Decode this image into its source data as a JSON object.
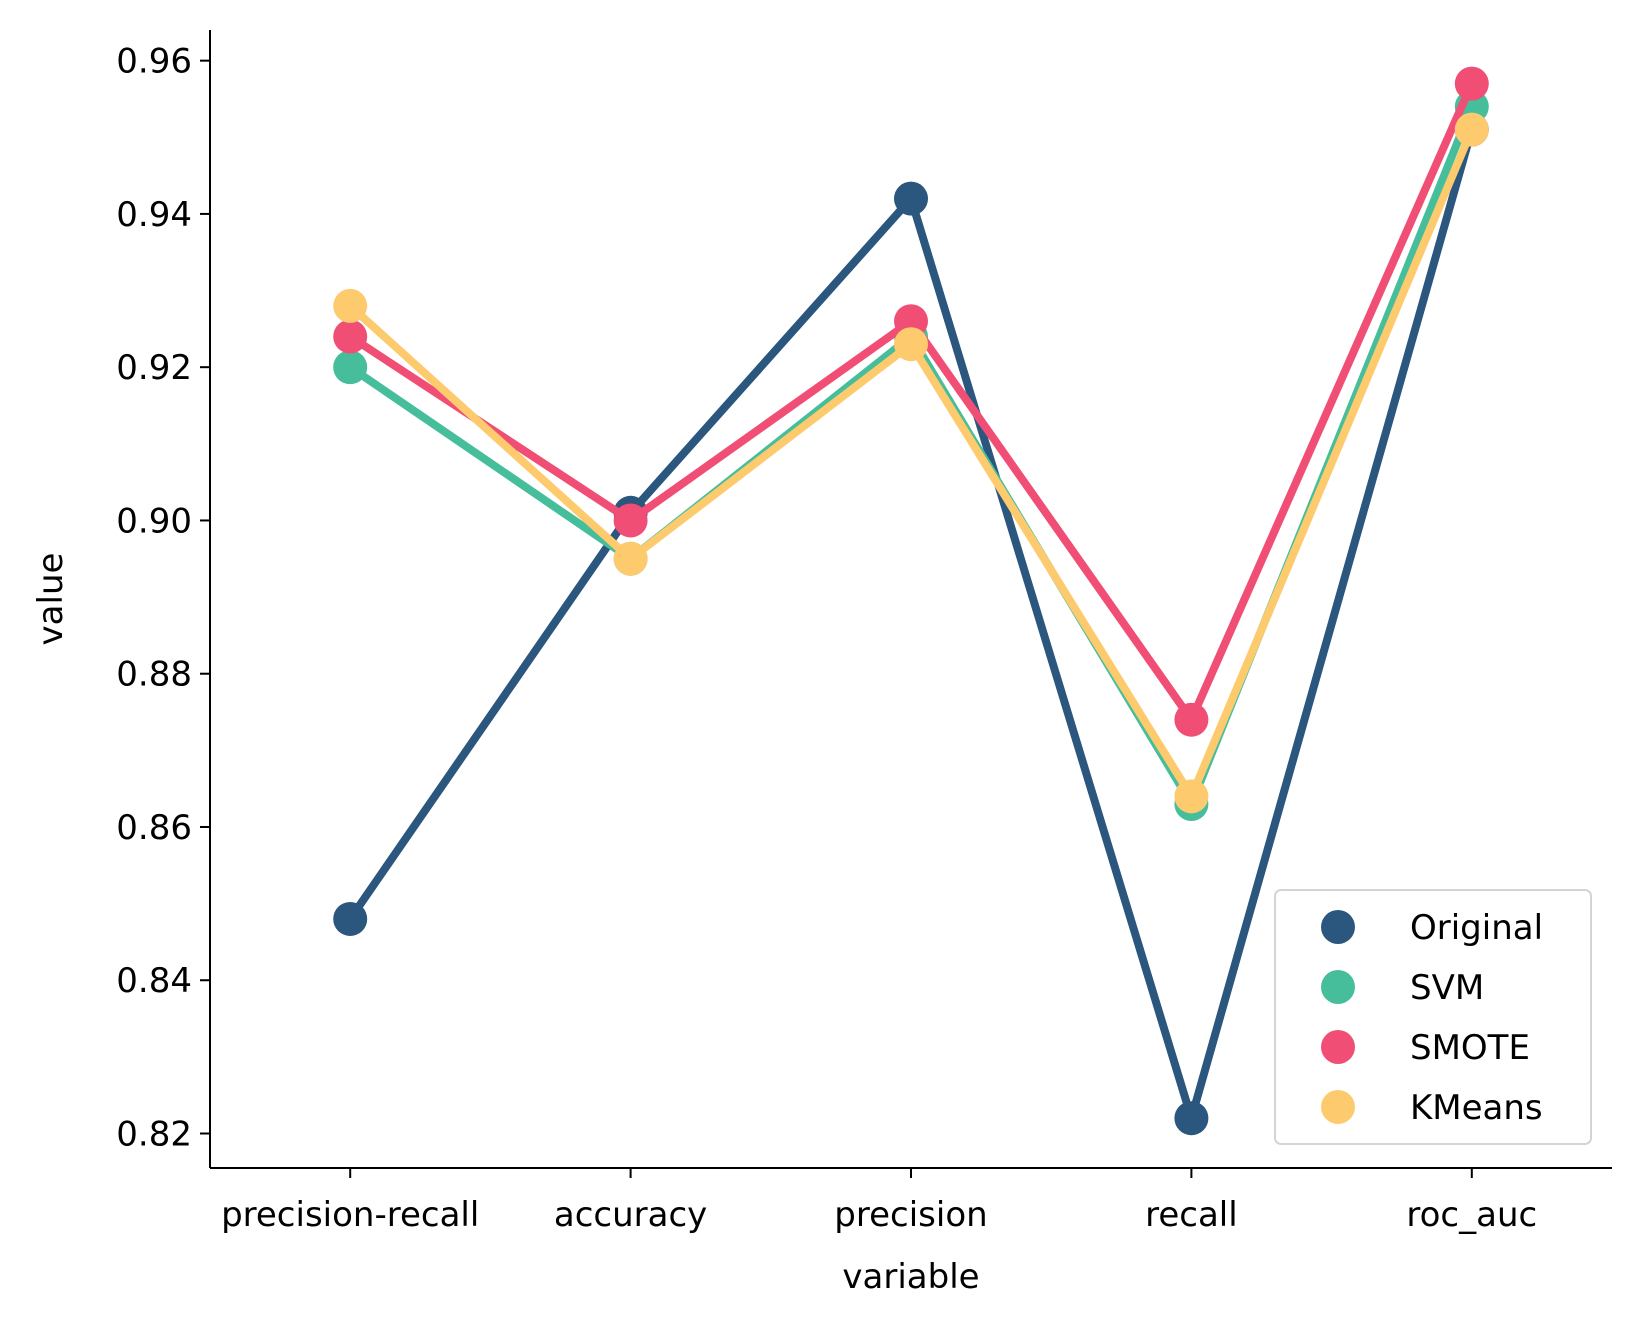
{
  "chart_data": {
    "type": "line",
    "xlabel": "variable",
    "ylabel": "value",
    "categories": [
      "precision-recall",
      "accuracy",
      "precision",
      "recall",
      "roc_auc"
    ],
    "ylim": [
      0.8155,
      0.964
    ],
    "yticks": [
      0.82,
      0.84,
      0.86,
      0.88,
      0.9,
      0.92,
      0.94,
      0.96
    ],
    "ytick_labels": [
      "0.82",
      "0.84",
      "0.86",
      "0.88",
      "0.90",
      "0.92",
      "0.94",
      "0.96"
    ],
    "grid": false,
    "legend_position": "bottom-right",
    "series": [
      {
        "name": "Original",
        "color": "#2b567e",
        "values": [
          0.848,
          0.901,
          0.942,
          0.822,
          0.951
        ]
      },
      {
        "name": "SVM",
        "color": "#46be9c",
        "values": [
          0.92,
          0.895,
          0.924,
          0.863,
          0.954
        ]
      },
      {
        "name": "SMOTE",
        "color": "#f04e75",
        "values": [
          0.924,
          0.9,
          0.926,
          0.874,
          0.957
        ]
      },
      {
        "name": "KMeans",
        "color": "#fdcb6e",
        "values": [
          0.928,
          0.895,
          0.923,
          0.864,
          0.951
        ]
      }
    ]
  }
}
